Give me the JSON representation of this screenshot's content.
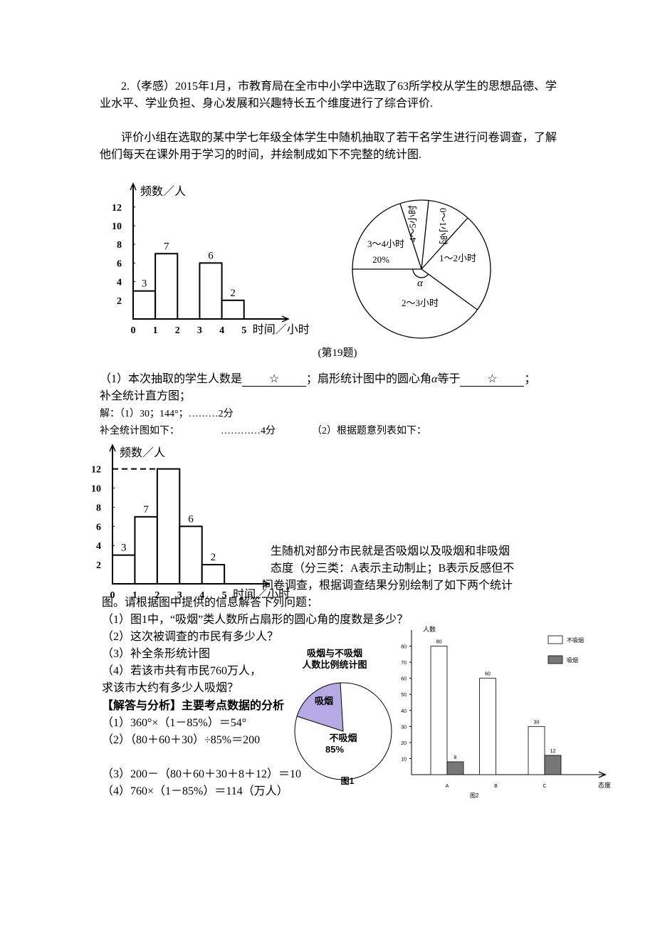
{
  "problem": {
    "intro": "2.（孝感）2015年1月，市教育局在全市中小学中选取了63所学校从学生的思想品德、学业水平、学业负担、身心发展和兴趣特长五个维度进行了综合评价.",
    "context": "评价小组在选取的某中学七年级全体学生中随机抽取了若干名学生进行问卷调查，了解他们每天在课外用于学习的时间，并绘制成如下不完整的统计图.",
    "histogram": {
      "type": "histogram",
      "ylabel": "频数／人",
      "xlabel": "时间／小时",
      "bins": [
        0,
        1,
        2,
        3,
        4,
        5
      ],
      "values": [
        3,
        7,
        null,
        6,
        2
      ],
      "xlim": [
        0,
        7
      ],
      "ylim": [
        0,
        14.5
      ],
      "yticks": [
        2,
        4,
        6,
        8,
        10,
        12
      ]
    },
    "pie": {
      "labels": [
        "0～1小时",
        "1～2小时",
        "2～3小时",
        "3～4小时",
        "4～5小时"
      ],
      "percent_label": "20%",
      "angle_label": "α"
    },
    "caption": "(第19题)",
    "question": {
      "text1": "（1）本次抽取的学生人数是",
      "blank1": "☆",
      "text2": "；扇形统计图中的圆心角",
      "symbol": "α",
      "text3": "等于",
      "blank2": "☆",
      "text4": "；",
      "text5": "补全统计直方图；"
    },
    "answer": {
      "line1": "解：（1）30；144°；………2分",
      "line2a": "补全统计图如下：",
      "line2b": "…………4分",
      "line2c": "（2）根据题意列表如下："
    },
    "histogram_completed": {
      "type": "histogram",
      "ylabel": "频数／人",
      "xlabel": "时间／小时",
      "bins": [
        0,
        1,
        2,
        3,
        4,
        5
      ],
      "values": [
        3,
        7,
        12,
        6,
        2
      ],
      "xlim": [
        0,
        7
      ],
      "ylim": [
        0,
        14.5
      ],
      "yticks": [
        2,
        4,
        6,
        8,
        10,
        12
      ]
    }
  },
  "problem2": {
    "intro": [
      "生随机对部分市民就是否吸烟以及吸烟和非吸烟",
      "态度（分三类：A表示主动制止；B表示反感但不",
      "问卷调查，根据调查结果分别绘制了如下两个统计",
      "图。请根据图中提供的信息解答下列问题："
    ],
    "questions": [
      "（1）图1中，“吸烟”类人数所占扇形的圆心角的度数是多少？",
      "（2）这次被调查的市民有多少人？",
      "（3）补全条形统计图",
      "（4）若该市共有市民760万人，",
      "求该市大约有多少人吸烟？"
    ],
    "answers": [
      "【解答与分析】主要考点数据的分析",
      "（1）360°×（1－85%）＝54°",
      "（2）（80＋60＋30）÷85%＝200",
      "（3）200－（80＋60＋30＋8＋12）＝10",
      "（4）760×（1－85%）＝114（万人）"
    ],
    "pie": {
      "title": [
        "吸烟与不吸烟",
        "人数比例统计图"
      ],
      "labels": [
        "吸烟",
        "不吸烟"
      ],
      "percent_label": "85%",
      "caption": "图1"
    },
    "bar": {
      "type": "bar",
      "ylabel": "人数",
      "xlabel": "态度",
      "caption": "图2",
      "categories": [
        "A",
        "B",
        "C"
      ],
      "series": [
        {
          "name": "不吸烟",
          "color": "#ffffff",
          "values": [
            80,
            60,
            30
          ]
        },
        {
          "name": "吸烟",
          "color": "#777777",
          "values": [
            8,
            null,
            12
          ]
        }
      ],
      "ylim": [
        0,
        90
      ],
      "yticks": [
        10,
        20,
        30,
        40,
        50,
        60,
        70,
        80
      ]
    }
  }
}
